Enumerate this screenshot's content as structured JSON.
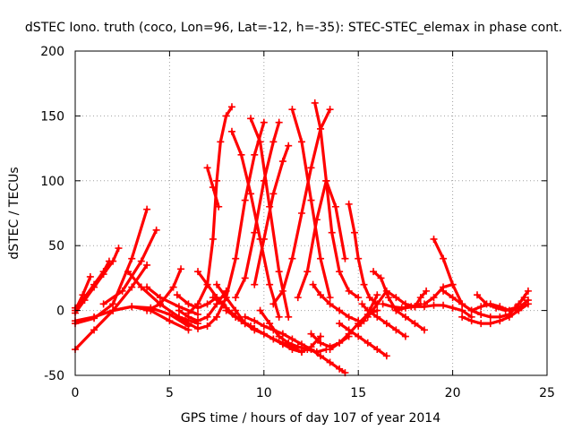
{
  "chart_data": {
    "type": "line",
    "title": "dSTEC Iono. truth (coco, Lon=96, Lat=-12, h=-35): STEC-STEC_elemax in phase cont.",
    "xlabel": "GPS time / hours of day 107 of year 2014",
    "ylabel": "dSTEC  / TECUs",
    "xlim": [
      0,
      25
    ],
    "ylim": [
      -50,
      200
    ],
    "xticks": [
      "0",
      "5",
      "10",
      "15",
      "20",
      "25"
    ],
    "yticks": [
      "-50",
      "0",
      "50",
      "100",
      "150",
      "200"
    ],
    "grid": true,
    "legend": "none",
    "marker": "plus",
    "color": "#ff0000",
    "series": [
      {
        "x": [
          0.0,
          0.5,
          1.0,
          1.5,
          2.0,
          2.3
        ],
        "y": [
          -2,
          8,
          18,
          28,
          38,
          48
        ]
      },
      {
        "x": [
          0.0,
          0.5,
          1.0,
          1.5,
          1.8
        ],
        "y": [
          2,
          10,
          20,
          30,
          38
        ]
      },
      {
        "x": [
          0.0,
          0.4,
          0.8
        ],
        "y": [
          0,
          12,
          26
        ]
      },
      {
        "x": [
          0.0,
          1.0,
          2.0,
          3.0,
          3.8
        ],
        "y": [
          -30,
          -15,
          0,
          18,
          35
        ]
      },
      {
        "x": [
          0.0,
          1.0,
          2.0,
          3.0,
          3.8
        ],
        "y": [
          -10,
          -6,
          5,
          40,
          78
        ]
      },
      {
        "x": [
          0.0,
          1.0,
          2.0,
          3.0,
          4.0,
          5.0,
          6.0
        ],
        "y": [
          -8,
          -5,
          0,
          3,
          0,
          -8,
          -15
        ]
      },
      {
        "x": [
          1.5,
          2.5,
          3.5,
          4.3
        ],
        "y": [
          5,
          15,
          38,
          62
        ]
      },
      {
        "x": [
          2.0,
          3.0,
          4.0,
          5.0,
          6.0
        ],
        "y": [
          0,
          3,
          2,
          -3,
          -12
        ]
      },
      {
        "x": [
          2.8,
          3.5,
          4.5,
          5.5,
          6.5
        ],
        "y": [
          30,
          18,
          5,
          -5,
          -10
        ]
      },
      {
        "x": [
          3.8,
          4.5,
          5.2,
          5.6
        ],
        "y": [
          0,
          5,
          18,
          32
        ]
      },
      {
        "x": [
          3.8,
          4.5,
          5.5,
          6.5
        ],
        "y": [
          18,
          10,
          3,
          -3
        ]
      },
      {
        "x": [
          5.4,
          6.0,
          6.5,
          7.0,
          7.5
        ],
        "y": [
          12,
          5,
          2,
          5,
          10
        ]
      },
      {
        "x": [
          5.5,
          6.0,
          6.5,
          7.0,
          7.5,
          8.0
        ],
        "y": [
          0,
          -5,
          -8,
          -5,
          5,
          15
        ]
      },
      {
        "x": [
          5.5,
          6.0,
          6.5,
          7.0,
          7.5,
          8.0,
          8.5,
          9.0,
          9.5,
          10.0
        ],
        "y": [
          -5,
          -10,
          -14,
          -12,
          -5,
          10,
          40,
          85,
          120,
          145
        ]
      },
      {
        "x": [
          6.0,
          6.5,
          7.0,
          7.3,
          7.5,
          7.7,
          8.0,
          8.3
        ],
        "y": [
          -2,
          5,
          20,
          55,
          100,
          130,
          150,
          157
        ]
      },
      {
        "x": [
          6.5,
          7.0,
          7.5,
          8.0,
          8.5,
          9.0
        ],
        "y": [
          30,
          20,
          10,
          2,
          -5,
          -10
        ]
      },
      {
        "x": [
          7.0,
          7.3,
          7.6
        ],
        "y": [
          110,
          95,
          80
        ]
      },
      {
        "x": [
          7.3,
          7.8,
          8.3,
          8.8,
          9.3
        ],
        "y": [
          10,
          5,
          -2,
          -8,
          -12
        ]
      },
      {
        "x": [
          7.5,
          8.0,
          8.5,
          9.0,
          9.5,
          10.0,
          10.5,
          11.0,
          11.5,
          12.0
        ],
        "y": [
          20,
          10,
          0,
          -10,
          -15,
          -18,
          -22,
          -25,
          -28,
          -32
        ]
      },
      {
        "x": [
          8.0,
          8.5,
          9.0,
          9.5,
          10.0,
          10.5,
          11.0,
          11.5,
          12.0,
          12.5,
          13.0
        ],
        "y": [
          0,
          -5,
          -10,
          -14,
          -18,
          -22,
          -26,
          -30,
          -32,
          -28,
          -20
        ]
      },
      {
        "x": [
          8.3,
          8.8,
          9.3,
          9.8,
          10.3,
          10.8
        ],
        "y": [
          138,
          120,
          90,
          55,
          20,
          -5
        ]
      },
      {
        "x": [
          8.5,
          9.0,
          9.5,
          10.0,
          10.5,
          10.8
        ],
        "y": [
          10,
          25,
          60,
          100,
          130,
          145
        ]
      },
      {
        "x": [
          9.0,
          9.5,
          10.0,
          10.5,
          11.0,
          11.5,
          12.0,
          12.5,
          13.0,
          13.5,
          14.0,
          14.3
        ],
        "y": [
          -5,
          -8,
          -12,
          -15,
          -18,
          -22,
          -26,
          -30,
          -35,
          -40,
          -45,
          -48
        ]
      },
      {
        "x": [
          9.3,
          9.8,
          10.3,
          10.8,
          11.3
        ],
        "y": [
          148,
          130,
          80,
          30,
          -5
        ]
      },
      {
        "x": [
          9.5,
          10.0,
          10.5,
          11.0,
          11.3
        ],
        "y": [
          20,
          55,
          90,
          115,
          127
        ]
      },
      {
        "x": [
          9.8,
          10.3,
          10.8,
          11.3,
          11.8,
          12.3,
          12.8,
          13.3
        ],
        "y": [
          0,
          -10,
          -20,
          -25,
          -28,
          -30,
          -32,
          -30
        ]
      },
      {
        "x": [
          10.5,
          11.0,
          11.5,
          12.0,
          12.5,
          13.0,
          13.5
        ],
        "y": [
          5,
          15,
          40,
          75,
          110,
          140,
          155
        ]
      },
      {
        "x": [
          11.5,
          12.0,
          12.5,
          13.0,
          13.5
        ],
        "y": [
          155,
          130,
          85,
          40,
          10
        ]
      },
      {
        "x": [
          11.8,
          12.3,
          12.8,
          13.3,
          13.8,
          14.3
        ],
        "y": [
          10,
          30,
          70,
          100,
          80,
          40
        ]
      },
      {
        "x": [
          12.7,
          13.0,
          13.3,
          13.6,
          14.0,
          14.5,
          15.0
        ],
        "y": [
          160,
          140,
          100,
          60,
          30,
          15,
          10
        ]
      },
      {
        "x": [
          12.5,
          13.0,
          13.5,
          14.0,
          14.5
        ],
        "y": [
          -18,
          -25,
          -28,
          -25,
          -20
        ]
      },
      {
        "x": [
          12.6,
          13.0,
          13.5,
          14.0,
          14.5,
          15.0
        ],
        "y": [
          20,
          12,
          5,
          0,
          -5,
          -8
        ]
      },
      {
        "x": [
          14.5,
          14.8,
          15.0,
          15.3,
          15.6,
          16.0
        ],
        "y": [
          82,
          60,
          40,
          20,
          10,
          5
        ]
      },
      {
        "x": [
          13.5,
          14.0,
          14.5,
          15.0,
          15.5,
          16.0
        ],
        "y": [
          -30,
          -25,
          -18,
          -10,
          -3,
          0
        ]
      },
      {
        "x": [
          14.0,
          14.5,
          15.0,
          15.5,
          16.0,
          16.5
        ],
        "y": [
          -10,
          -15,
          -20,
          -25,
          -30,
          -35
        ]
      },
      {
        "x": [
          15.0,
          15.3,
          15.6,
          16.0
        ],
        "y": [
          -12,
          -8,
          0,
          12
        ]
      },
      {
        "x": [
          15.2,
          15.5,
          16.0,
          16.5,
          17.0,
          17.5
        ],
        "y": [
          5,
          0,
          -5,
          -10,
          -15,
          -20
        ]
      },
      {
        "x": [
          15.8,
          16.2,
          16.6,
          17.0,
          17.5,
          18.0,
          18.5
        ],
        "y": [
          30,
          25,
          10,
          0,
          -5,
          -10,
          -15
        ]
      },
      {
        "x": [
          15.5,
          16.0,
          16.5,
          17.0,
          17.5,
          18.0
        ],
        "y": [
          -5,
          5,
          15,
          10,
          5,
          3
        ]
      },
      {
        "x": [
          16.3,
          16.8,
          17.3,
          17.8,
          18.3
        ],
        "y": [
          5,
          3,
          2,
          3,
          5
        ]
      },
      {
        "x": [
          17.0,
          17.5,
          18.0,
          18.5,
          19.0,
          19.5,
          20.0,
          20.5,
          21.0
        ],
        "y": [
          0,
          2,
          3,
          3,
          4,
          4,
          2,
          0,
          -5
        ]
      },
      {
        "x": [
          18.0,
          18.3,
          18.6
        ],
        "y": [
          3,
          10,
          15
        ]
      },
      {
        "x": [
          19.0,
          19.5,
          20.0,
          20.5,
          21.0,
          21.5
        ],
        "y": [
          55,
          40,
          20,
          5,
          0,
          -3
        ]
      },
      {
        "x": [
          18.5,
          19.0,
          19.5,
          20.0
        ],
        "y": [
          5,
          10,
          18,
          20
        ]
      },
      {
        "x": [
          19.5,
          20.0,
          20.5,
          21.0,
          21.5,
          22.0,
          22.5,
          23.0,
          23.5,
          24.0
        ],
        "y": [
          15,
          10,
          5,
          0,
          -3,
          -5,
          -5,
          -3,
          5,
          15
        ]
      },
      {
        "x": [
          20.5,
          21.0,
          21.5,
          22.0,
          22.5,
          23.0,
          23.5,
          24.0
        ],
        "y": [
          -5,
          -8,
          -10,
          -10,
          -8,
          -5,
          0,
          5
        ]
      },
      {
        "x": [
          21.0,
          21.5,
          22.0,
          22.5,
          23.0,
          23.5,
          24.0
        ],
        "y": [
          0,
          3,
          5,
          3,
          0,
          2,
          8
        ]
      },
      {
        "x": [
          21.3,
          21.8,
          22.3,
          22.8,
          23.3,
          23.8
        ],
        "y": [
          12,
          5,
          2,
          0,
          2,
          10
        ]
      }
    ]
  }
}
